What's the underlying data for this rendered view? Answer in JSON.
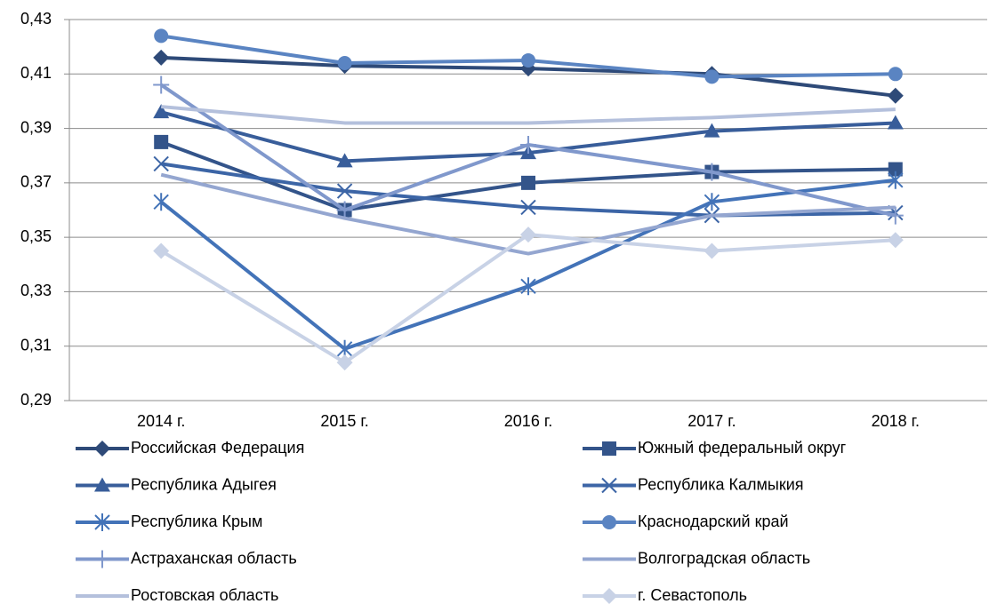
{
  "chart_data": {
    "type": "line",
    "categories": [
      "2014 г.",
      "2015 г.",
      "2016 г.",
      "2017 г.",
      "2018 г."
    ],
    "ylim": [
      0.29,
      0.43
    ],
    "yticks": [
      {
        "value": 0.29,
        "label": "0,29"
      },
      {
        "value": 0.31,
        "label": "0,31"
      },
      {
        "value": 0.33,
        "label": "0,33"
      },
      {
        "value": 0.35,
        "label": "0,35"
      },
      {
        "value": 0.37,
        "label": "0,37"
      },
      {
        "value": 0.39,
        "label": "0,39"
      },
      {
        "value": 0.41,
        "label": "0,41"
      },
      {
        "value": 0.43,
        "label": "0,43"
      }
    ],
    "grid": true,
    "legend": "bottom",
    "series": [
      {
        "name": "Российская Федерация",
        "color": "#2e4a78",
        "marker": "diamond",
        "values": [
          0.416,
          0.413,
          0.412,
          0.41,
          0.402
        ]
      },
      {
        "name": "Южный федеральный округ",
        "color": "#33548a",
        "marker": "square",
        "values": [
          0.385,
          0.36,
          0.37,
          0.374,
          0.375
        ]
      },
      {
        "name": "Республика Адыгея",
        "color": "#385d9a",
        "marker": "triangle",
        "values": [
          0.396,
          0.378,
          0.381,
          0.389,
          0.392
        ]
      },
      {
        "name": "Республика Калмыкия",
        "color": "#3c65a6",
        "marker": "x",
        "values": [
          0.377,
          0.367,
          0.361,
          0.358,
          0.359
        ]
      },
      {
        "name": "Республика Крым",
        "color": "#4373b8",
        "marker": "asterisk",
        "values": [
          0.363,
          0.309,
          0.332,
          0.363,
          0.371
        ]
      },
      {
        "name": "Краснодарский край",
        "color": "#5a84c2",
        "marker": "circle",
        "values": [
          0.424,
          0.414,
          0.415,
          0.409,
          0.41
        ]
      },
      {
        "name": "Астраханская область",
        "color": "#8098cc",
        "marker": "plus",
        "values": [
          0.406,
          0.36,
          0.384,
          0.374,
          0.358
        ]
      },
      {
        "name": "Волгоградская область",
        "color": "#94a6d0",
        "marker": "none",
        "values": [
          0.373,
          0.357,
          0.344,
          0.358,
          0.361
        ]
      },
      {
        "name": "Ростовская область",
        "color": "#b4c0dc",
        "marker": "none",
        "values": [
          0.398,
          0.392,
          0.392,
          0.394,
          0.397
        ]
      },
      {
        "name": "г. Севастополь",
        "color": "#c8d2e6",
        "marker": "diamond",
        "values": [
          0.345,
          0.304,
          0.351,
          0.345,
          0.349
        ]
      }
    ]
  }
}
